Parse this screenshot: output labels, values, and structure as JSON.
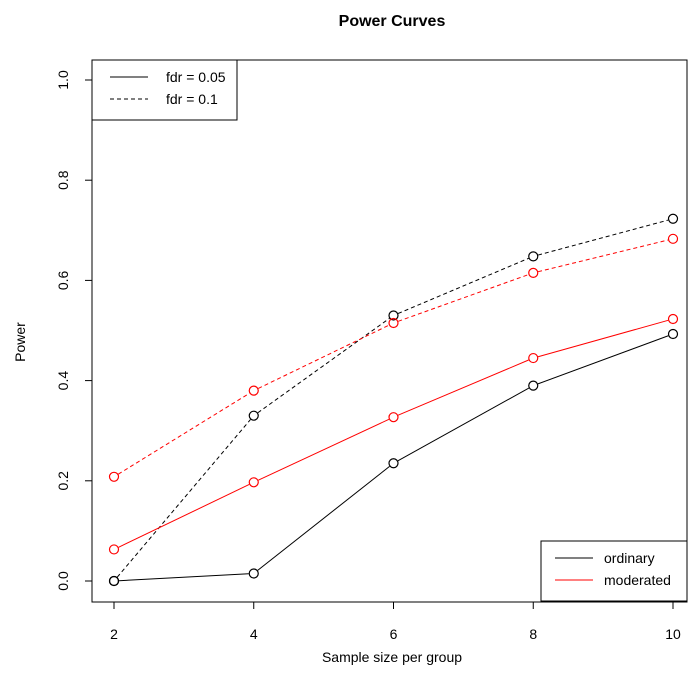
{
  "chart_data": {
    "type": "line",
    "title": "Power Curves",
    "xlabel": "Sample size per group",
    "ylabel": "Power",
    "x": [
      2,
      4,
      6,
      8,
      10
    ],
    "xticks": [
      "2",
      "4",
      "6",
      "8",
      "10"
    ],
    "yticks": [
      "0.0",
      "0.2",
      "0.4",
      "0.6",
      "0.8",
      "1.0"
    ],
    "xlim": [
      2,
      10
    ],
    "ylim": [
      0,
      1
    ],
    "grid": false,
    "series": [
      {
        "method": "ordinary",
        "fdr": "0.05",
        "color": "#000000",
        "linestyle": "solid",
        "values": [
          0.0,
          0.015,
          0.235,
          0.39,
          0.493
        ]
      },
      {
        "method": "ordinary",
        "fdr": "0.1",
        "color": "#000000",
        "linestyle": "dashed",
        "values": [
          0.0,
          0.33,
          0.53,
          0.648,
          0.723
        ]
      },
      {
        "method": "moderated",
        "fdr": "0.05",
        "color": "#ff0000",
        "linestyle": "solid",
        "values": [
          0.063,
          0.197,
          0.327,
          0.445,
          0.523
        ]
      },
      {
        "method": "moderated",
        "fdr": "0.1",
        "color": "#ff0000",
        "linestyle": "dashed",
        "values": [
          0.208,
          0.38,
          0.515,
          0.615,
          0.683
        ]
      }
    ],
    "legends": [
      {
        "position": "top-left",
        "entries": [
          {
            "label": "fdr = 0.05",
            "linestyle": "solid",
            "color": "#000000"
          },
          {
            "label": "fdr = 0.1",
            "linestyle": "dashed",
            "color": "#000000"
          }
        ]
      },
      {
        "position": "bottom-right",
        "entries": [
          {
            "label": "ordinary",
            "linestyle": "solid",
            "color": "#000000"
          },
          {
            "label": "moderated",
            "linestyle": "solid",
            "color": "#ff0000"
          }
        ]
      }
    ]
  }
}
